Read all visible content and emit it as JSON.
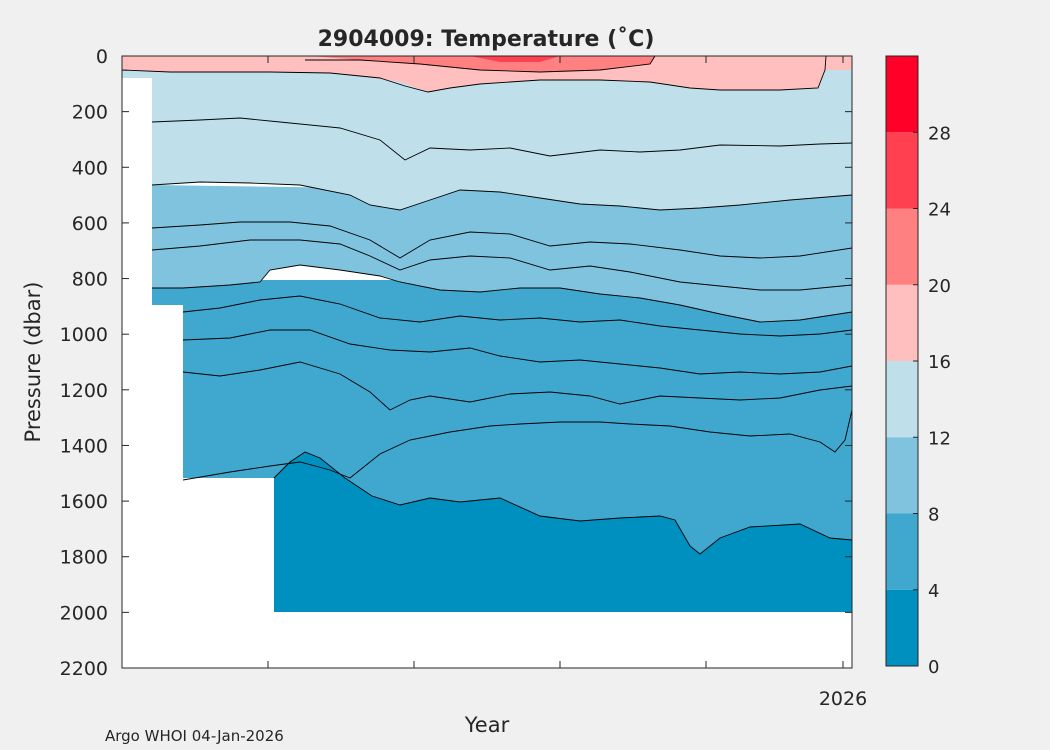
{
  "chart_data": {
    "type": "filled-contour",
    "title": "2904009:  Temperature (˚C)",
    "xlabel": "Year",
    "ylabel": "Pressure (dbar)",
    "footer": "Argo WHOI 04-Jan-2026",
    "ylim": [
      2200,
      0
    ],
    "yticks": [
      "0",
      "200",
      "400",
      "600",
      "800",
      "1000",
      "1200",
      "1400",
      "1600",
      "1800",
      "2000",
      "2200"
    ],
    "xticks": [
      "",
      "",
      "",
      "",
      "",
      "2026"
    ],
    "colorbar": {
      "range": [
        0,
        32
      ],
      "ticks": [
        "0",
        "4",
        "8",
        "12",
        "16",
        "20",
        "24",
        "28"
      ],
      "bands": [
        {
          "from": 0,
          "to": 4,
          "color": "#0090bf"
        },
        {
          "from": 4,
          "to": 8,
          "color": "#40a8cf"
        },
        {
          "from": 8,
          "to": 12,
          "color": "#80c3df"
        },
        {
          "from": 12,
          "to": 16,
          "color": "#bfe0eb"
        },
        {
          "from": 16,
          "to": 20,
          "color": "#ffbfbf"
        },
        {
          "from": 20,
          "to": 24,
          "color": "#ff8080"
        },
        {
          "from": 24,
          "to": 28,
          "color": "#ff4050"
        },
        {
          "from": 28,
          "to": 32,
          "color": "#ff0028"
        }
      ]
    },
    "isotherm_depths_dbar": [
      {
        "temp": 14,
        "depth": 250
      },
      {
        "temp": 12,
        "depth": 470
      },
      {
        "temp": 10,
        "depth": 620
      },
      {
        "temp": 9,
        "depth": 700
      },
      {
        "temp": 8,
        "depth": 820
      },
      {
        "temp": 7,
        "depth": 950
      },
      {
        "temp": 6,
        "depth": 1040
      },
      {
        "temp": 5,
        "depth": 1160
      },
      {
        "temp": 4,
        "depth": 1480
      }
    ]
  }
}
